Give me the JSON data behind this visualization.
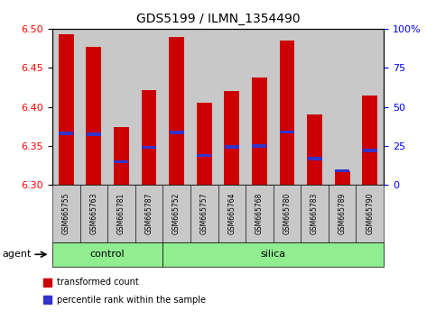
{
  "title": "GDS5199 / ILMN_1354490",
  "samples": [
    "GSM665755",
    "GSM665763",
    "GSM665781",
    "GSM665787",
    "GSM665752",
    "GSM665757",
    "GSM665764",
    "GSM665768",
    "GSM665780",
    "GSM665783",
    "GSM665789",
    "GSM665790"
  ],
  "n_control": 4,
  "n_silica": 8,
  "transformed_count": [
    6.493,
    6.477,
    6.374,
    6.421,
    6.49,
    6.405,
    6.42,
    6.437,
    6.485,
    6.39,
    6.318,
    6.414
  ],
  "percentile_rank": [
    6.366,
    6.365,
    6.33,
    6.348,
    6.367,
    6.338,
    6.349,
    6.35,
    6.368,
    6.334,
    6.318,
    6.344
  ],
  "y_min": 6.3,
  "y_max": 6.5,
  "y_ticks": [
    6.3,
    6.35,
    6.4,
    6.45,
    6.5
  ],
  "y_ticks_right": [
    0,
    25,
    50,
    75,
    100
  ],
  "bar_color": "#cc0000",
  "marker_color": "#3333cc",
  "bar_width": 0.55,
  "group_bg": "#90ee90",
  "sample_bg": "#c8c8c8",
  "legend_items": [
    {
      "label": "transformed count",
      "color": "#cc0000"
    },
    {
      "label": "percentile rank within the sample",
      "color": "#3333cc"
    }
  ]
}
